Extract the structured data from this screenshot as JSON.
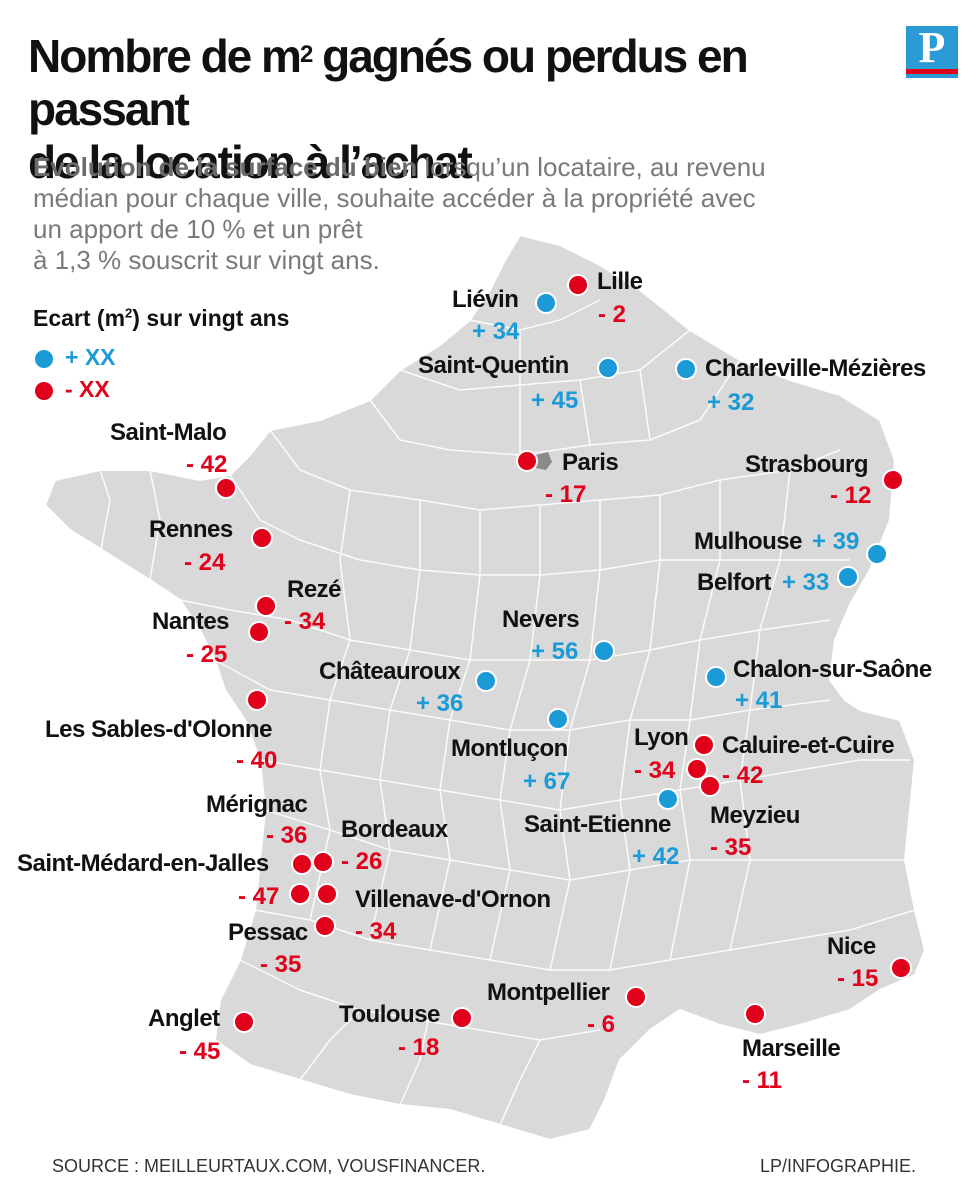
{
  "title_line1": "Nombre de m",
  "title_sup": "2",
  "title_rest": " gagnés ou perdus en passant",
  "title_line2": "de la location à l’achat",
  "logo_letter": "P",
  "subtitle_lead": "Evolution de la surface du bien",
  "subtitle_rest1": " lorsqu’un locataire, au revenu",
  "subtitle_line2": "médian pour chaque ville, souhaite accéder à la propriété avec",
  "subtitle_line3": "un apport de 10 % et un prêt",
  "subtitle_line4": "à 1,3 % souscrit sur vingt ans.",
  "legend": {
    "title_a": "Ecart (m",
    "title_sup": "2",
    "title_b": ") sur vingt ans",
    "gain_label": "+ XX",
    "loss_label": "- XX"
  },
  "colors": {
    "gain": "#1a9ad6",
    "loss": "#e1001a",
    "land": "#d9d9d9",
    "border": "#ffffff"
  },
  "cities": [
    {
      "name": "Lille",
      "value": "- 2",
      "type": "loss"
    },
    {
      "name": "Liévin",
      "value": "+ 34",
      "type": "gain"
    },
    {
      "name": "Saint-Quentin",
      "value": "+ 45",
      "type": "gain"
    },
    {
      "name": "Charleville-Mézières",
      "value": "+ 32",
      "type": "gain"
    },
    {
      "name": "Saint-Malo",
      "value": "- 42",
      "type": "loss"
    },
    {
      "name": "Paris",
      "value": "- 17",
      "type": "loss"
    },
    {
      "name": "Strasbourg",
      "value": "- 12",
      "type": "loss"
    },
    {
      "name": "Rennes",
      "value": "- 24",
      "type": "loss"
    },
    {
      "name": "Mulhouse",
      "value": "+ 39",
      "type": "gain"
    },
    {
      "name": "Belfort",
      "value": "+ 33",
      "type": "gain"
    },
    {
      "name": "Rezé",
      "value": "- 34",
      "type": "loss"
    },
    {
      "name": "Nantes",
      "value": "- 25",
      "type": "loss"
    },
    {
      "name": "Nevers",
      "value": "+ 56",
      "type": "gain"
    },
    {
      "name": "Châteauroux",
      "value": "+ 36",
      "type": "gain"
    },
    {
      "name": "Chalon-sur-Saône",
      "value": "+ 41",
      "type": "gain"
    },
    {
      "name": "Les Sables-d'Olonne",
      "value": "- 40",
      "type": "loss"
    },
    {
      "name": "Montluçon",
      "value": "+ 67",
      "type": "gain"
    },
    {
      "name": "Lyon",
      "value": "- 34",
      "type": "loss"
    },
    {
      "name": "Caluire-et-Cuire",
      "value": "- 42",
      "type": "loss"
    },
    {
      "name": "Mérignac",
      "value": "- 36",
      "type": "loss"
    },
    {
      "name": "Bordeaux",
      "value": "- 26",
      "type": "loss"
    },
    {
      "name": "Saint-Etienne",
      "value": "+ 42",
      "type": "gain"
    },
    {
      "name": "Meyzieu",
      "value": "- 35",
      "type": "loss"
    },
    {
      "name": "Saint-Médard-en-Jalles",
      "value": "- 47",
      "type": "loss"
    },
    {
      "name": "Villenave-d'Ornon",
      "value": "- 34",
      "type": "loss"
    },
    {
      "name": "Pessac",
      "value": "- 35",
      "type": "loss"
    },
    {
      "name": "Nice",
      "value": "- 15",
      "type": "loss"
    },
    {
      "name": "Anglet",
      "value": "- 45",
      "type": "loss"
    },
    {
      "name": "Toulouse",
      "value": "- 18",
      "type": "loss"
    },
    {
      "name": "Montpellier",
      "value": "- 6",
      "type": "loss"
    },
    {
      "name": "Marseille",
      "value": "- 11",
      "type": "loss"
    }
  ],
  "footer": {
    "source": "SOURCE : MEILLEURTAUX.COM, VOUSFINANCER.",
    "credit": "LP/INFOGRAPHIE."
  }
}
